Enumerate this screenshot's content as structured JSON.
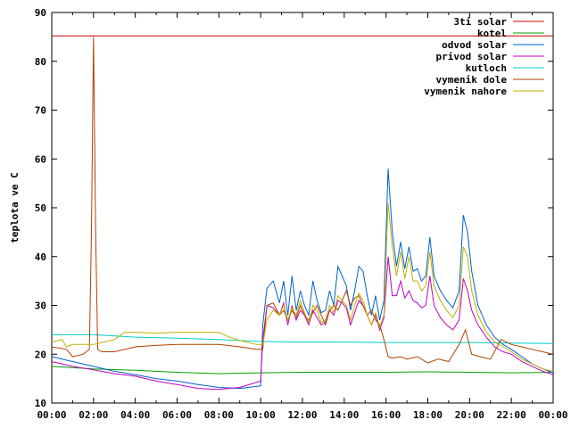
{
  "chart_data": {
    "type": "line",
    "title": "",
    "xlabel": "",
    "ylabel": "teplota ve C",
    "xlim": [
      "00:00",
      "24:00"
    ],
    "ylim": [
      10,
      90
    ],
    "x_ticks": [
      "00:00",
      "02:00",
      "04:00",
      "06:00",
      "08:00",
      "10:00",
      "12:00",
      "14:00",
      "16:00",
      "18:00",
      "20:00",
      "22:00",
      "00:00"
    ],
    "y_ticks": [
      10,
      20,
      30,
      40,
      50,
      60,
      70,
      80,
      90
    ],
    "grid": false,
    "legend_position": "top-right",
    "series": [
      {
        "name": "3ti solar",
        "color": "#cc0000",
        "x": [
          0,
          24
        ],
        "y": [
          85.2,
          85.2
        ]
      },
      {
        "name": "kotel",
        "color": "#00a000",
        "x": [
          0,
          2,
          4,
          6,
          8,
          10,
          12,
          14,
          16,
          18,
          20,
          22,
          24
        ],
        "y": [
          17.5,
          17.0,
          16.7,
          16.3,
          16.0,
          16.2,
          16.3,
          16.3,
          16.3,
          16.4,
          16.3,
          16.2,
          16.3
        ]
      },
      {
        "name": "odvod solar",
        "color": "#0060d0",
        "x": [
          0,
          1,
          2,
          3,
          4,
          5,
          6,
          7,
          8,
          9,
          10,
          10.1,
          10.3,
          10.6,
          10.9,
          11.1,
          11.3,
          11.5,
          11.7,
          11.9,
          12.1,
          12.3,
          12.5,
          12.7,
          12.9,
          13.1,
          13.3,
          13.5,
          13.7,
          13.9,
          14.1,
          14.3,
          14.5,
          14.7,
          14.9,
          15.1,
          15.3,
          15.5,
          15.7,
          15.9,
          16.1,
          16.3,
          16.5,
          16.7,
          16.9,
          17.1,
          17.3,
          17.5,
          17.7,
          17.9,
          18.1,
          18.3,
          18.6,
          18.9,
          19.2,
          19.5,
          19.7,
          19.9,
          20.1,
          20.4,
          20.8,
          21.2,
          21.6,
          22,
          22.5,
          23,
          23.5,
          24
        ],
        "y": [
          19.5,
          18.5,
          17.5,
          16.5,
          15.8,
          15.0,
          14.5,
          13.8,
          13.2,
          13.0,
          13.5,
          26.0,
          33.5,
          35.0,
          30.5,
          35.0,
          28.0,
          36.0,
          29.0,
          33.0,
          30.0,
          28.0,
          35.0,
          31.0,
          28.5,
          29.0,
          33.0,
          30.0,
          38.0,
          36.0,
          34.0,
          29.0,
          33.0,
          38.0,
          37.0,
          32.0,
          28.0,
          32.0,
          27.0,
          31.0,
          58.0,
          45.0,
          38.0,
          43.0,
          37.5,
          42.0,
          37.0,
          37.5,
          35.0,
          36.0,
          44.0,
          36.0,
          33.0,
          31.0,
          29.5,
          33.0,
          48.5,
          45.0,
          37.0,
          30.0,
          26.0,
          23.5,
          22.0,
          21.0,
          19.5,
          18.0,
          17.0,
          16.2
        ]
      },
      {
        "name": "privod solar",
        "color": "#c000c0",
        "x": [
          0,
          1,
          2,
          3,
          4,
          5,
          6,
          7,
          8,
          9,
          10,
          10.1,
          10.3,
          10.6,
          10.9,
          11.1,
          11.3,
          11.5,
          11.7,
          11.9,
          12.1,
          12.3,
          12.5,
          12.7,
          12.9,
          13.1,
          13.3,
          13.5,
          13.7,
          13.9,
          14.1,
          14.3,
          14.5,
          14.7,
          14.9,
          15.1,
          15.3,
          15.5,
          15.7,
          15.9,
          16.1,
          16.3,
          16.5,
          16.7,
          16.9,
          17.1,
          17.3,
          17.5,
          17.7,
          17.9,
          18.1,
          18.3,
          18.6,
          18.9,
          19.2,
          19.5,
          19.7,
          19.9,
          20.1,
          20.4,
          20.8,
          21.2,
          21.6,
          22,
          22.5,
          23,
          23.5,
          24
        ],
        "y": [
          18.5,
          17.5,
          16.8,
          16.0,
          15.5,
          14.5,
          13.8,
          13.0,
          12.8,
          13.2,
          14.5,
          23.0,
          30.0,
          29.5,
          28.0,
          30.5,
          26.0,
          30.0,
          27.0,
          29.0,
          28.0,
          26.0,
          29.0,
          27.5,
          26.0,
          26.5,
          29.0,
          28.0,
          31.0,
          30.5,
          29.5,
          26.0,
          28.5,
          31.0,
          30.0,
          28.0,
          26.0,
          28.0,
          25.0,
          27.5,
          40.0,
          32.0,
          32.0,
          35.0,
          31.5,
          33.0,
          31.0,
          30.5,
          29.5,
          30.0,
          36.0,
          30.0,
          27.5,
          26.0,
          25.0,
          27.0,
          35.5,
          33.0,
          29.0,
          26.0,
          23.5,
          21.5,
          20.5,
          20.0,
          18.5,
          17.5,
          16.5,
          15.8
        ]
      },
      {
        "name": "kutloch",
        "color": "#00cccc",
        "x": [
          0,
          2,
          4,
          6,
          8,
          10,
          12,
          14,
          16,
          18,
          20,
          22,
          24
        ],
        "y": [
          24.0,
          24.0,
          23.5,
          23.3,
          23.0,
          22.6,
          22.5,
          22.5,
          22.4,
          22.4,
          22.4,
          22.3,
          22.2
        ]
      },
      {
        "name": "vymenik dole",
        "color": "#b04000",
        "x": [
          0,
          0.7,
          1.0,
          1.5,
          1.8,
          1.9,
          2.0,
          2.1,
          2.2,
          2.4,
          3.0,
          4.0,
          5.0,
          6.0,
          7.0,
          8.0,
          9.0,
          9.8,
          10.1,
          10.3,
          10.6,
          10.9,
          11.1,
          11.3,
          11.5,
          11.7,
          11.9,
          12.1,
          12.3,
          12.5,
          12.7,
          12.9,
          13.1,
          13.3,
          13.5,
          13.7,
          13.9,
          14.1,
          14.3,
          14.5,
          14.7,
          14.9,
          15.1,
          15.3,
          15.5,
          15.7,
          15.9,
          16.1,
          16.3,
          16.7,
          17.0,
          17.5,
          18.0,
          18.5,
          19.0,
          19.5,
          19.8,
          20.1,
          20.5,
          21.0,
          21.5,
          22.0,
          22.5,
          23.0,
          23.5,
          24
        ],
        "y": [
          21.5,
          21.0,
          19.5,
          20.0,
          21.0,
          45.0,
          85.0,
          45.0,
          21.0,
          20.5,
          20.5,
          21.5,
          21.8,
          22.0,
          22.0,
          22.0,
          21.5,
          21.0,
          21.0,
          30.0,
          30.5,
          28.0,
          29.0,
          27.0,
          29.0,
          27.5,
          30.0,
          28.0,
          27.0,
          28.5,
          30.0,
          28.0,
          26.0,
          29.0,
          30.0,
          29.0,
          31.0,
          33.0,
          30.0,
          31.5,
          32.0,
          30.0,
          28.0,
          29.0,
          27.0,
          26.0,
          23.0,
          19.5,
          19.2,
          19.5,
          19.0,
          19.5,
          18.2,
          19.0,
          18.5,
          22.0,
          25.0,
          20.0,
          19.5,
          19.0,
          23.0,
          22.0,
          21.5,
          21.0,
          20.5,
          20.0
        ]
      },
      {
        "name": "vymenik nahore",
        "color": "#c0b000",
        "x": [
          0,
          0.5,
          0.7,
          1.0,
          2.0,
          2.5,
          3.0,
          3.5,
          4.0,
          5.0,
          6.0,
          7.0,
          8.0,
          8.5,
          9.0,
          9.8,
          10.1,
          10.3,
          10.6,
          10.9,
          11.1,
          11.3,
          11.5,
          11.7,
          11.9,
          12.1,
          12.3,
          12.5,
          12.7,
          12.9,
          13.1,
          13.3,
          13.5,
          13.7,
          13.9,
          14.1,
          14.3,
          14.5,
          14.7,
          14.9,
          15.1,
          15.3,
          15.5,
          15.7,
          15.9,
          16.1,
          16.3,
          16.5,
          16.7,
          16.9,
          17.1,
          17.3,
          17.5,
          17.7,
          17.9,
          18.1,
          18.3,
          18.6,
          18.9,
          19.2,
          19.5,
          19.7,
          19.9,
          20.1,
          20.4,
          20.8,
          21.2,
          21.6,
          22,
          22.5,
          23,
          23.5,
          24
        ],
        "y": [
          22.5,
          23.0,
          21.5,
          22.0,
          22.0,
          22.5,
          23.0,
          24.5,
          24.5,
          24.3,
          24.5,
          24.5,
          24.5,
          23.5,
          22.8,
          22.0,
          22.0,
          27.0,
          29.0,
          28.0,
          30.0,
          27.0,
          29.5,
          28.0,
          31.0,
          28.5,
          26.5,
          30.0,
          29.0,
          26.5,
          27.0,
          30.0,
          28.5,
          32.0,
          31.0,
          30.0,
          27.0,
          30.0,
          32.5,
          31.0,
          28.0,
          26.0,
          28.5,
          25.5,
          28.0,
          51.0,
          42.0,
          36.0,
          41.0,
          35.5,
          40.0,
          35.0,
          35.0,
          33.0,
          34.0,
          41.0,
          34.0,
          31.0,
          29.0,
          27.5,
          30.0,
          42.0,
          40.0,
          33.0,
          28.0,
          24.5,
          22.5,
          21.5,
          20.5,
          19.0,
          18.0,
          17.0,
          16.5
        ]
      }
    ]
  }
}
